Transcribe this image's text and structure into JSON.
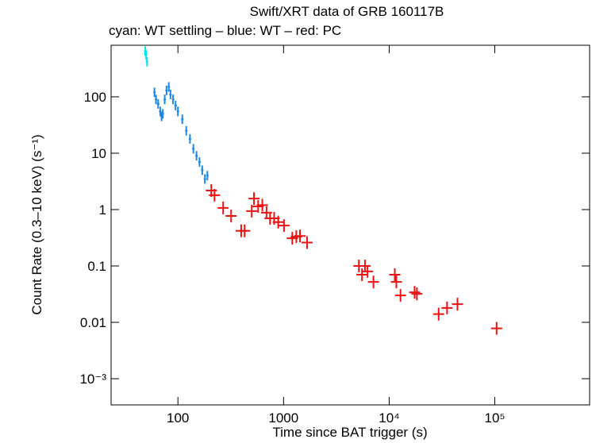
{
  "chart_data": {
    "type": "scatter",
    "title": "Swift/XRT data of GRB 160117B",
    "subtitle": "cyan: WT settling – blue: WT – red: PC",
    "x_label": "Time since BAT trigger (s)",
    "y_label": "Count Rate (0.3–10 keV) (s⁻¹)",
    "x_log": true,
    "y_log": true,
    "xlim": [
      23.3,
      790000
    ],
    "ylim": [
      0.000343,
      822
    ],
    "xticks": [
      100,
      1000,
      {
        "value": 10000,
        "label": "10⁴"
      },
      {
        "value": 100000,
        "label": "10⁵"
      }
    ],
    "yticks": [
      {
        "value": 0.001,
        "label": "10⁻³"
      },
      0.01,
      0.1,
      1,
      10,
      100
    ],
    "series": [
      {
        "name": "WT settling",
        "color": "#00e5ee",
        "x": [
          49,
          50,
          51
        ],
        "values": [
          650,
          550,
          420
        ]
      },
      {
        "name": "WT",
        "color": "#1e88e5",
        "x": [
          60,
          62,
          65,
          68,
          70,
          72,
          75,
          78,
          82,
          85,
          90,
          95,
          100,
          110,
          120,
          130,
          140,
          150,
          160,
          170,
          180,
          190
        ],
        "values": [
          120,
          90,
          75,
          55,
          45,
          50,
          90,
          130,
          150,
          110,
          90,
          70,
          55,
          40,
          25,
          18,
          12,
          9,
          7,
          5,
          3.5,
          4
        ]
      },
      {
        "name": "PC",
        "color": "#ee1111",
        "x": [
          207,
          222,
          268,
          319,
          397,
          428,
          500,
          525,
          575,
          630,
          690,
          745,
          815,
          890,
          1010,
          1210,
          1320,
          1430,
          1670,
          5170,
          5530,
          5900,
          6240,
          7100,
          11300,
          11700,
          12800,
          17400,
          18300,
          29400,
          35300,
          44300,
          104000
        ],
        "values": [
          2.18,
          1.8,
          1.07,
          0.77,
          0.42,
          0.42,
          0.94,
          1.57,
          1.14,
          1.2,
          0.88,
          0.7,
          0.7,
          0.6,
          0.52,
          0.31,
          0.33,
          0.34,
          0.26,
          0.1,
          0.07,
          0.1,
          0.08,
          0.052,
          0.07,
          0.052,
          0.03,
          0.034,
          0.032,
          0.014,
          0.018,
          0.021,
          0.0078
        ]
      }
    ]
  }
}
